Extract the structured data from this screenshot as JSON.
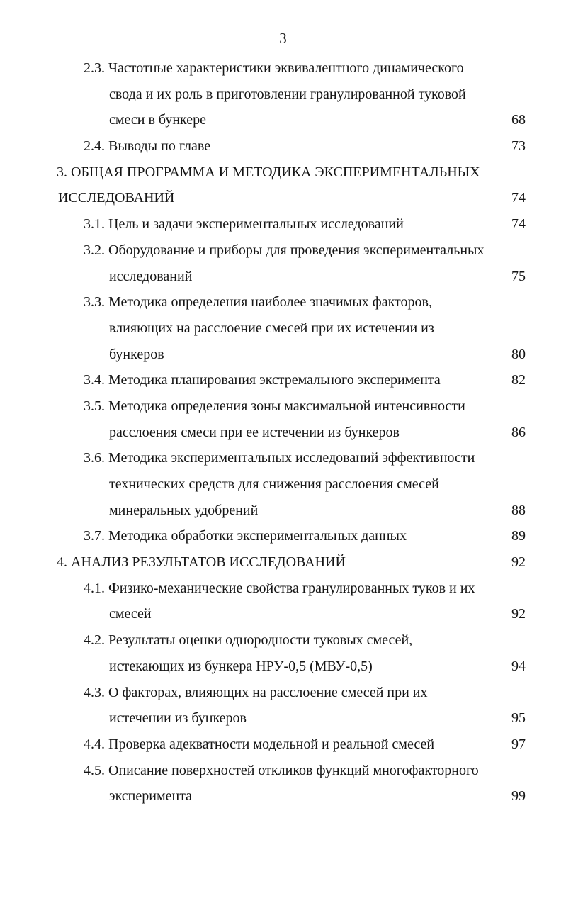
{
  "page_number": "3",
  "toc_entries": [
    {
      "level": "sub",
      "lines": [
        "2.3. Частотные характеристики эквивалентного динамического",
        "свода и их роль в приготовлении гранулированной туковой",
        "смеси в бункере"
      ],
      "page": "68"
    },
    {
      "level": "sub",
      "lines": [
        "2.4. Выводы по главе"
      ],
      "page": "73"
    },
    {
      "level": "chapter",
      "lines": [
        "3. ОБЩАЯ ПРОГРАММА И МЕТОДИКА ЭКСПЕРИМЕНТАЛЬНЫХ",
        "ИССЛЕДОВАНИЙ"
      ],
      "page": "74"
    },
    {
      "level": "sub",
      "lines": [
        "3.1. Цель и задачи экспериментальных исследований"
      ],
      "page": "74"
    },
    {
      "level": "sub",
      "lines": [
        "3.2. Оборудование и приборы для проведения экспериментальных",
        "исследований"
      ],
      "page": "75"
    },
    {
      "level": "sub",
      "lines": [
        "3.3. Методика определения наиболее значимых факторов,",
        "влияющих на расслоение смесей при их истечении из",
        "бункеров"
      ],
      "page": "80"
    },
    {
      "level": "sub",
      "lines": [
        "3.4. Методика планирования экстремального эксперимента"
      ],
      "page": "82"
    },
    {
      "level": "sub",
      "lines": [
        "3.5. Методика определения зоны максимальной интенсивности",
        "расслоения смеси при ее истечении из бункеров"
      ],
      "page": "86"
    },
    {
      "level": "sub",
      "lines": [
        "3.6. Методика экспериментальных исследований эффективности",
        "технических средств для снижения расслоения смесей",
        "минеральных удобрений"
      ],
      "page": "88"
    },
    {
      "level": "sub",
      "lines": [
        "3.7. Методика обработки экспериментальных данных"
      ],
      "page": "89"
    },
    {
      "level": "chapter",
      "lines": [
        "4. АНАЛИЗ РЕЗУЛЬТАТОВ ИССЛЕДОВАНИЙ"
      ],
      "page": "92"
    },
    {
      "level": "sub",
      "lines": [
        "4.1. Физико-механические свойства гранулированных туков и их",
        "смесей"
      ],
      "page": "92"
    },
    {
      "level": "sub",
      "lines": [
        "4.2. Результаты оценки однородности туковых смесей,",
        "истекающих из бункера НРУ-0,5 (МВУ-0,5)"
      ],
      "page": "94"
    },
    {
      "level": "sub",
      "lines": [
        "4.3. О факторах, влияющих на расслоение смесей при их",
        "истечении из бункеров"
      ],
      "page": "95"
    },
    {
      "level": "sub",
      "lines": [
        "4.4. Проверка адекватности модельной и реальной смесей"
      ],
      "page": "97"
    },
    {
      "level": "sub",
      "lines": [
        "4.5. Описание поверхностей откликов функций многофакторного",
        "эксперимента"
      ],
      "page": "99"
    }
  ]
}
